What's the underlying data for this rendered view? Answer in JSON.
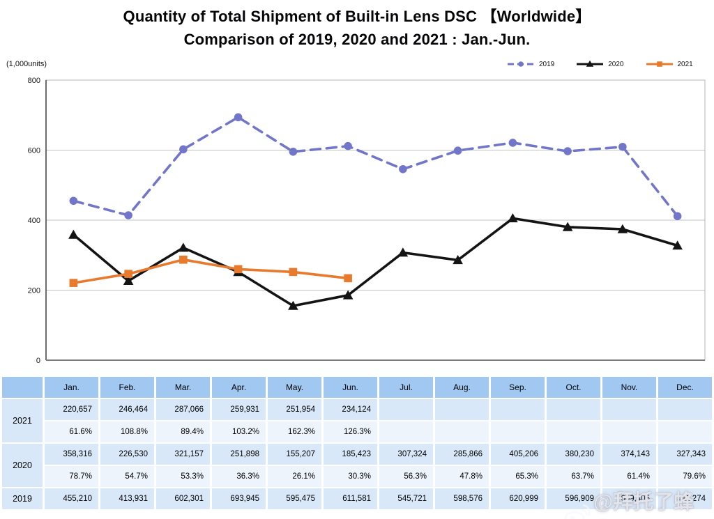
{
  "title": {
    "line1": "Quantity of Total Shipment of Built-in Lens DSC 【Worldwide】",
    "line2": "Comparison of 2019, 2020 and 2021 : Jan.-Jun."
  },
  "chart": {
    "unit_label": "(1,000units)",
    "y_ticks": [
      0,
      200,
      400,
      600,
      800
    ],
    "grid_color": "#c3c3c3",
    "border_color": "#b5b5b5"
  },
  "chart_data": {
    "type": "line",
    "title": "Quantity of Total Shipment of Built-in Lens DSC (Worldwide)",
    "xlabel": "",
    "ylabel": "(1,000units)",
    "ylim": [
      0,
      800
    ],
    "grid": true,
    "legend_position": "top-right",
    "categories": [
      "Jan.",
      "Feb.",
      "Mar.",
      "Apr.",
      "May.",
      "Jun.",
      "Jul.",
      "Aug.",
      "Sep.",
      "Oct.",
      "Nov.",
      "Dec."
    ],
    "series": [
      {
        "name": "2019",
        "color": "#7276c9",
        "style": "dashed",
        "marker": "circle",
        "values": [
          455.21,
          413.931,
          602.301,
          693.945,
          595.475,
          611.581,
          545.721,
          598.576,
          620.999,
          596.909,
          609.405,
          411.274
        ]
      },
      {
        "name": "2020",
        "color": "#141414",
        "style": "solid",
        "marker": "triangle",
        "values": [
          358.316,
          226.53,
          321.157,
          251.898,
          155.207,
          185.423,
          307.324,
          285.866,
          405.206,
          380.23,
          374.143,
          327.343
        ]
      },
      {
        "name": "2021",
        "color": "#e87a2e",
        "style": "solid",
        "marker": "square",
        "values": [
          220.657,
          246.464,
          287.066,
          259.931,
          251.954,
          234.124,
          null,
          null,
          null,
          null,
          null,
          null
        ]
      }
    ]
  },
  "table": {
    "columns": [
      "Jan.",
      "Feb.",
      "Mar.",
      "Apr.",
      "May.",
      "Jun.",
      "Jul.",
      "Aug.",
      "Sep.",
      "Oct.",
      "Nov.",
      "Dec."
    ],
    "row_groups": [
      {
        "year": "2021",
        "shipments": [
          "220,657",
          "246,464",
          "287,066",
          "259,931",
          "251,954",
          "234,124",
          "",
          "",
          "",
          "",
          "",
          ""
        ],
        "yoy": [
          "61.6%",
          "108.8%",
          "89.4%",
          "103.2%",
          "162.3%",
          "126.3%",
          "",
          "",
          "",
          "",
          "",
          ""
        ]
      },
      {
        "year": "2020",
        "shipments": [
          "358,316",
          "226,530",
          "321,157",
          "251,898",
          "155,207",
          "185,423",
          "307,324",
          "285,866",
          "405,206",
          "380,230",
          "374,143",
          "327,343"
        ],
        "yoy": [
          "78.7%",
          "54.7%",
          "53.3%",
          "36.3%",
          "26.1%",
          "30.3%",
          "56.3%",
          "47.8%",
          "65.3%",
          "63.7%",
          "61.4%",
          "79.6%"
        ]
      },
      {
        "year": "2019",
        "shipments": [
          "455,210",
          "413,931",
          "602,301",
          "693,945",
          "595,475",
          "611,581",
          "545,721",
          "598,576",
          "620,999",
          "596,909",
          "609,405",
          "411,274"
        ],
        "yoy": null
      }
    ]
  },
  "watermark": {
    "text": "@拜托了蜂鸟"
  }
}
